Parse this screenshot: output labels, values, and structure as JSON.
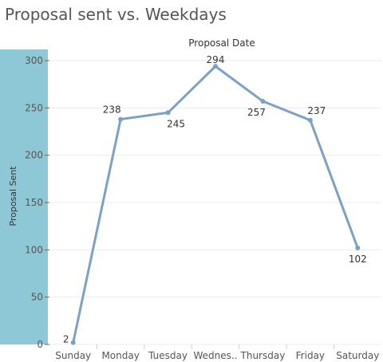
{
  "page": {
    "title": "Proposal sent vs. Weekdays"
  },
  "colors": {
    "line": "#7ba1c4",
    "band": "#8ec8d6",
    "grid": "#ececec",
    "axis": "#cfcfcf"
  },
  "chart_data": {
    "type": "line",
    "title": "Proposal sent vs. Weekdays",
    "xlabel": "Proposal Date",
    "ylabel": "Proposal Sent",
    "categories": [
      "Sunday",
      "Monday",
      "Tuesday",
      "Wednes..",
      "Thursday",
      "Friday",
      "Saturday"
    ],
    "series": [
      {
        "values": [
          2,
          238,
          245,
          294,
          257,
          237,
          102
        ]
      }
    ],
    "data_labels": [
      "2",
      "238",
      "245",
      "294",
      "257",
      "237",
      "102"
    ],
    "yticks": [
      0,
      50,
      100,
      150,
      200,
      250,
      300
    ],
    "ylim": [
      0,
      300
    ],
    "grid": true
  }
}
